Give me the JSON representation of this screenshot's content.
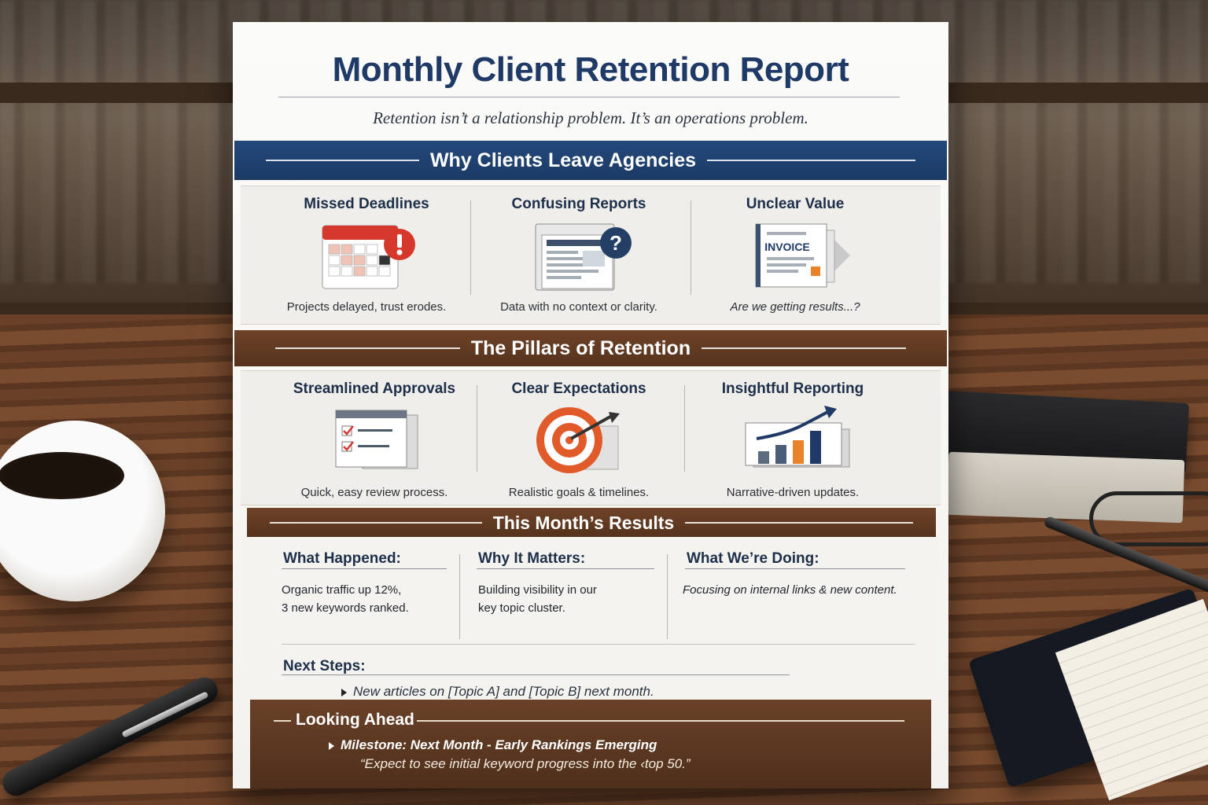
{
  "report": {
    "title": "Monthly Client Retention Report",
    "subtitle": "Retention isn’t a relationship problem. It’s an operations problem."
  },
  "why_section": {
    "heading": "Why Clients Leave Agencies",
    "items": [
      {
        "title": "Missed Deadlines",
        "caption": "Projects delayed, trust erodes.",
        "icon": "calendar-alert-icon"
      },
      {
        "title": "Confusing Reports",
        "caption": "Data with no context or clarity.",
        "icon": "report-question-icon"
      },
      {
        "title": "Unclear Value",
        "caption": "Are we getting results...?",
        "icon": "invoice-icon",
        "icon_text": "INVOICE"
      }
    ]
  },
  "pillars_section": {
    "heading": "The Pillars of Retention",
    "items": [
      {
        "title": "Streamlined Approvals",
        "caption": "Quick, easy review process.",
        "icon": "checklist-icon"
      },
      {
        "title": "Clear Expectations",
        "caption": "Realistic goals & timelines.",
        "icon": "target-icon"
      },
      {
        "title": "Insightful Reporting",
        "caption": "Narrative-driven updates.",
        "icon": "growth-chart-icon"
      }
    ]
  },
  "results_section": {
    "heading": "This Month’s Results",
    "what_happened": {
      "label": "What Happened:",
      "text": "Organic traffic up 12%,\n3 new keywords ranked."
    },
    "why_it_matters": {
      "label": "Why It Matters:",
      "text": "Building visibility in our\nkey topic cluster."
    },
    "what_were_doing": {
      "label": "What We’re Doing:",
      "text": "Focusing on internal links & new content."
    },
    "next_steps": {
      "label": "Next Steps:",
      "item": "New articles on [Topic A] and [Topic B] next month."
    }
  },
  "looking_ahead": {
    "heading": "Looking Ahead",
    "milestone": "Milestone: Next Month - Early Rankings Emerging",
    "quote": "“Expect to see initial keyword progress into the ‹top 50.”"
  },
  "colors": {
    "title_blue": "#1f3a66",
    "band_blue": "#1b3a64",
    "band_brown": "#55321c",
    "accent_red": "#d7382c",
    "accent_orange": "#e8832a"
  }
}
